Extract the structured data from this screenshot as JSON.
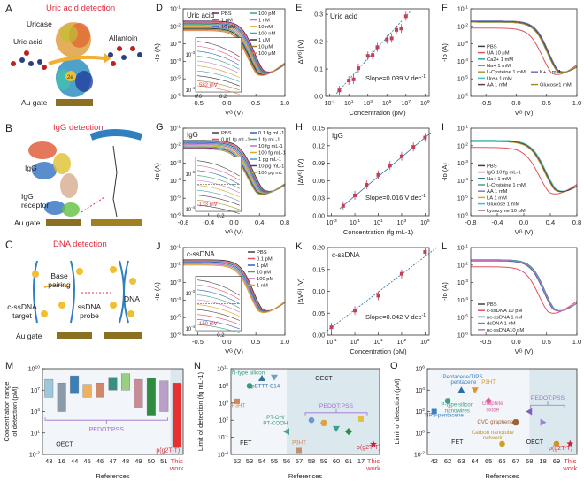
{
  "schematics": {
    "A": {
      "letter": "A",
      "title": "Uric acid detection",
      "labels": [
        "Uricase",
        "Uric acid",
        "Allantoin",
        "Au gate"
      ],
      "electron": "2e"
    },
    "B": {
      "letter": "B",
      "title": "IgG detection",
      "labels": [
        "IgG",
        "IgG receptor",
        "Au gate"
      ],
      "linker_atoms": [
        "N",
        "N",
        "S"
      ]
    },
    "C": {
      "letter": "C",
      "title": "DNA detection",
      "labels": [
        "Base pairing",
        "c-ssDNA target",
        "ssDNA probe",
        "DNA",
        "Au gate"
      ],
      "ends": [
        "5'",
        "3'",
        "3'",
        "5'"
      ],
      "atoms": [
        "S",
        "S"
      ],
      "electron": "e"
    }
  },
  "colors": {
    "accent": "#e03040",
    "fit_line": "#3a7ca5",
    "point": "#c0405a",
    "oect_shade": "#dbe9ee",
    "fet_shade": "#f2f6fa",
    "pedot": "#a070d0"
  },
  "chart_data": [
    {
      "id": "D",
      "type": "line",
      "title": "Uric acid",
      "xlabel": "V_G (V)",
      "ylabel": "-I_D (A)",
      "xlim": [
        -0.75,
        1.0
      ],
      "ylim_log10": [
        -6,
        -1
      ],
      "xticks": [
        "-0.5",
        "0.0",
        "0.5",
        "1.0"
      ],
      "yticks": [
        "10-6",
        "10-5",
        "10-4",
        "10-3",
        "10-2",
        "10-1"
      ],
      "legend": [
        "PBS",
        "1 pM",
        "10 pM",
        "100 pM",
        "1 nM",
        "10 nM",
        "100 nM",
        "1 μM",
        "10 μM",
        "100 μM"
      ],
      "series_colors": [
        "#5a2d5e",
        "#e05060",
        "#3060c0",
        "#40a080",
        "#c070c0",
        "#e0a020",
        "#40a0c0",
        "#303030",
        "#a08030",
        "#e08040"
      ],
      "inset": {
        "annotation": "582 mV",
        "yticks": [
          "10-4",
          "10-3"
        ],
        "xticks": [
          "0.0",
          "0.2"
        ]
      }
    },
    {
      "id": "E",
      "type": "scatter",
      "title": "Uric acid",
      "xlabel": "Concentration (pM)",
      "ylabel": "|ΔV_G| (V)",
      "ylim": [
        0,
        0.32
      ],
      "xticks": [
        "10-1",
        "101",
        "103",
        "105",
        "107",
        "109"
      ],
      "yticks": [
        "0.0",
        "0.1",
        "0.2",
        "0.3"
      ],
      "x_log10": [
        0,
        1,
        1.5,
        2,
        3,
        3.5,
        4,
        5,
        5.5,
        6,
        6.5,
        7
      ],
      "y": [
        0.022,
        0.058,
        0.062,
        0.103,
        0.148,
        0.151,
        0.18,
        0.208,
        0.212,
        0.243,
        0.248,
        0.293
      ],
      "annotation": "Slope=0.039 V dec-1"
    },
    {
      "id": "F",
      "type": "line",
      "xlabel": "V_G (V)",
      "ylabel": "-I_D (A)",
      "xlim": [
        -0.75,
        1.0
      ],
      "ylim_log10": [
        -6,
        -1
      ],
      "xticks": [
        "-0.5",
        "0.0",
        "0.5",
        "1.0"
      ],
      "yticks": [
        "10-6",
        "10-5",
        "10-4",
        "10-3",
        "10-2",
        "10-1"
      ],
      "legend": [
        "PBS",
        "UA 10 μM",
        "Ca2+ 1 mM",
        "Na+ 1 mM",
        "L-Cysteine 1 mM",
        "Urea 1 mM",
        "K+ 1 mM",
        "AA 1 mM",
        "Glucose1 mM"
      ],
      "series_colors": [
        "#404040",
        "#e05060",
        "#30a0b0",
        "#30708a",
        "#a0a030",
        "#40c0c0",
        "#7070d0",
        "#6a3a3a",
        "#a09020"
      ]
    },
    {
      "id": "G",
      "type": "line",
      "title": "IgG",
      "xlabel": "V_G (V)",
      "ylabel": "-I_D (A)",
      "xlim": [
        -0.8,
        0.8
      ],
      "ylim_log10": [
        -6,
        -1
      ],
      "xticks": [
        "-0.8",
        "-0.4",
        "0.0",
        "0.4",
        "0.8"
      ],
      "yticks": [
        "10-6",
        "10-5",
        "10-4",
        "10-3",
        "10-2",
        "10-1"
      ],
      "legend": [
        "PBS",
        "0.01 fg mL-1",
        "0.1 fg mL-1",
        "1 fg mL-1",
        "10 fg mL-1",
        "100 fg mL-1",
        "1 pg mL-1",
        "10 pg mL-1",
        "100 pg mL"
      ],
      "series_colors": [
        "#404040",
        "#e05060",
        "#3060c0",
        "#40a080",
        "#c070c0",
        "#d0b020",
        "#40a0c0",
        "#6a2d5e",
        "#a0a030"
      ],
      "inset": {
        "annotation": "133 mV",
        "yticks": [
          "10-4",
          "10-3"
        ],
        "xticks": [
          "0.2"
        ]
      }
    },
    {
      "id": "H",
      "type": "scatter",
      "title": "IgG",
      "xlabel": "Concentration (fg mL-1)",
      "ylabel": "|ΔV_G| (V)",
      "ylim": [
        0,
        0.15
      ],
      "xticks": [
        "10-3",
        "10-1",
        "101",
        "103",
        "105"
      ],
      "yticks": [
        "0.00",
        "0.03",
        "0.06",
        "0.09",
        "0.12",
        "0.15"
      ],
      "x_log10": [
        -2,
        -1,
        0,
        1,
        2,
        3,
        4,
        5
      ],
      "y": [
        0.017,
        0.035,
        0.053,
        0.07,
        0.086,
        0.102,
        0.118,
        0.134
      ],
      "annotation": "Slope=0.016 V dec-1"
    },
    {
      "id": "I",
      "type": "line",
      "xlabel": "V_G (V)",
      "ylabel": "-I_D (A)",
      "xlim": [
        -0.8,
        0.8
      ],
      "ylim_log10": [
        -6,
        -1
      ],
      "xticks": [
        "-0.8",
        "-0.4",
        "0.0",
        "0.4",
        "0.8"
      ],
      "yticks": [
        "10-6",
        "10-5",
        "10-4",
        "10-3",
        "10-2",
        "10-1"
      ],
      "legend": [
        "PBS",
        "IgG 10 fg mL-1",
        "Na+ 1 mM",
        "L-Cysteine 1 mM",
        "AA 1 mM",
        "LA 1 mM",
        "Glucose 1 mM",
        "Lysozyme 10 μM"
      ],
      "series_colors": [
        "#404040",
        "#e05060",
        "#30708a",
        "#40a080",
        "#9070d0",
        "#d0b020",
        "#40c0c0",
        "#6a3a3a"
      ]
    },
    {
      "id": "J",
      "type": "line",
      "title": "c-ssDNA",
      "xlabel": "V_G (V)",
      "ylabel": "-I_D (A)",
      "xlim": [
        -0.75,
        1.0
      ],
      "ylim_log10": [
        -6,
        -1
      ],
      "xticks": [
        "-0.5",
        "0.0",
        "0.5",
        "1.0"
      ],
      "yticks": [
        "10-6",
        "10-5",
        "10-4",
        "10-3",
        "10-2",
        "10-1"
      ],
      "legend": [
        "PBS",
        "0.1 pM",
        "1 pM",
        "10 pM",
        "100 pM",
        "1 nM"
      ],
      "series_colors": [
        "#404040",
        "#e05060",
        "#3060c0",
        "#40a080",
        "#c070c0",
        "#e0a020"
      ],
      "inset": {
        "annotation": "150 mV",
        "yticks": [
          "10-4",
          "10-3"
        ],
        "xticks": [
          "0.2"
        ]
      }
    },
    {
      "id": "K",
      "type": "scatter",
      "title": "c-ssDNA",
      "xlabel": "Concentration (pM)",
      "ylabel": "|ΔV_G| (V)",
      "ylim": [
        0,
        0.2
      ],
      "xticks": [
        "10-1",
        "100",
        "101",
        "102",
        "103"
      ],
      "yticks": [
        "0.00",
        "0.05",
        "0.10",
        "0.15",
        "0.20"
      ],
      "x_log10": [
        -1,
        0,
        1,
        2,
        3
      ],
      "y": [
        0.018,
        0.056,
        0.09,
        0.14,
        0.19
      ],
      "annotation": "Slope=0.042 V dec-1"
    },
    {
      "id": "L",
      "type": "line",
      "xlabel": "V_G (V)",
      "ylabel": "-I_D (A)",
      "xlim": [
        -0.75,
        1.0
      ],
      "ylim_log10": [
        -6,
        -1
      ],
      "xticks": [
        "-0.5",
        "0.0",
        "0.5",
        "1.0"
      ],
      "yticks": [
        "10-6",
        "10-5",
        "10-4",
        "10-3",
        "10-2",
        "10-1"
      ],
      "legend": [
        "PBS",
        "c-ssDNA 10 pM",
        "nc-ssDNA 1 nM",
        "dsDNA 1 nM",
        "nc-ssDNA10 pM"
      ],
      "series_colors": [
        "#404040",
        "#e05060",
        "#3060c0",
        "#40a080",
        "#c070c0"
      ]
    },
    {
      "id": "M",
      "type": "bar",
      "xlabel": "References",
      "ylabel": "Concentration range of detection (pM)",
      "ylim_log10": [
        -2,
        10
      ],
      "yticks": [
        "10-2",
        "101",
        "104",
        "107",
        "1010"
      ],
      "categories": [
        "43",
        "16",
        "44",
        "45",
        "46",
        "47",
        "48",
        "49",
        "50",
        "51",
        "This work"
      ],
      "ranges_log10": [
        [
          6,
          8.5
        ],
        [
          4,
          8
        ],
        [
          6.5,
          9
        ],
        [
          6,
          7.8
        ],
        [
          6,
          8
        ],
        [
          7,
          8.8
        ],
        [
          7,
          9.3
        ],
        [
          4.5,
          8.5
        ],
        [
          3.5,
          8.7
        ],
        [
          4,
          8.3
        ],
        [
          -1,
          8
        ]
      ],
      "bar_colors": [
        "#9cc8dc",
        "#8a9aa8",
        "#3a80b8",
        "#f0b060",
        "#d08868",
        "#3a9080",
        "#98d080",
        "#c88c98",
        "#2e8c40",
        "#b8a0c8",
        "#e83030"
      ],
      "annotations": [
        "PEDOT:PSS",
        "OECT",
        "p(g2T-T)"
      ]
    },
    {
      "id": "N",
      "type": "scatter",
      "xlabel": "References",
      "ylabel": "Limit of detection (fg mL-1)",
      "ylim_log10": [
        -4,
        11
      ],
      "yticks": [
        "10-4",
        "10-1",
        "102",
        "105",
        "108",
        "1011"
      ],
      "categories": [
        "52",
        "53",
        "54",
        "55",
        "56",
        "57",
        "58",
        "59",
        "60",
        "61",
        "17",
        "This work"
      ],
      "points_log10": [
        5.3,
        8,
        9.3,
        9.5,
        0,
        -3.3,
        2,
        1.5,
        0.5,
        0,
        2.2,
        -2.2
      ],
      "point_colors": [
        "#d08858",
        "#3a9a80",
        "#3a70a0",
        "#70a0c0",
        "#50a090",
        "#c09070",
        "#7098d0",
        "#e0a040",
        "#40a090",
        "#2e8c40",
        "#e0c040",
        "#c82040"
      ],
      "annotations": [
        "N-type silicon",
        "pBTTT-C14",
        "P3HT",
        "PT-OH/ PT-COOH",
        "P3HT",
        "PEDOT:PSS",
        "OECT",
        "FET",
        "p(g2T-T)"
      ]
    },
    {
      "id": "O",
      "type": "scatter",
      "xlabel": "References",
      "ylabel": "Limit of detection (pM)",
      "ylim_log10": [
        -2,
        6
      ],
      "yticks": [
        "10-2",
        "100",
        "102",
        "104",
        "106"
      ],
      "categories": [
        "42",
        "62",
        "63",
        "64",
        "65",
        "66",
        "67",
        "68",
        "18",
        "69",
        "This work"
      ],
      "points_log10": [
        2,
        3,
        4,
        4,
        3,
        -1,
        1,
        2,
        1,
        -1,
        -1
      ],
      "point_colors": [
        "#4080c0",
        "#40a080",
        "#2a70a8",
        "#e09030",
        "#e060a0",
        "#d0a020",
        "#a06030",
        "#8060c0",
        "#a080e0",
        "#d09030",
        "#c82040"
      ],
      "annotations": [
        "Pentacene/TIPS -pentacene",
        "P3HT",
        "P-type silicon nanowires",
        "Graphite oxide",
        "TIPS-pentacene",
        "CVD graphene",
        "Carbon nanotube network",
        "PEDOT:PSS",
        "FET",
        "OECT",
        "p(g2T-T)"
      ]
    }
  ]
}
